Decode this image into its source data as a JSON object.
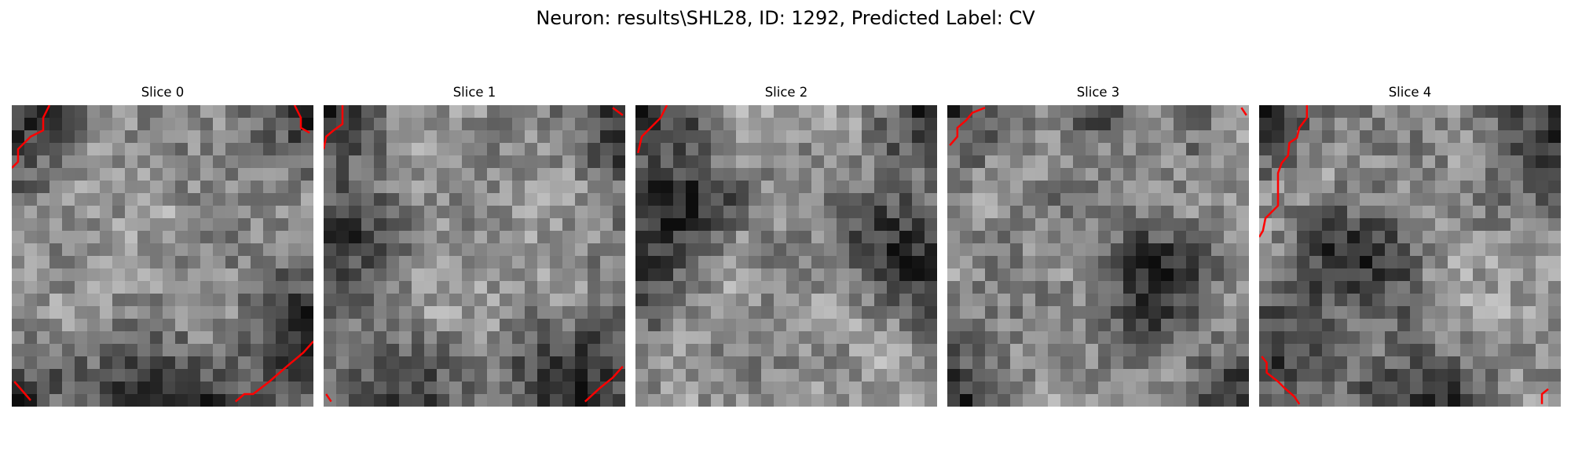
{
  "figure": {
    "title": "Neuron: results\\SHL28, ID: 1292, Predicted Label: CV",
    "line_color": "#ff0000"
  },
  "slices": [
    {
      "label": "Slice 0"
    },
    {
      "label": "Slice 1"
    },
    {
      "label": "Slice 2"
    },
    {
      "label": "Slice 3"
    },
    {
      "label": "Slice 4"
    }
  ]
}
